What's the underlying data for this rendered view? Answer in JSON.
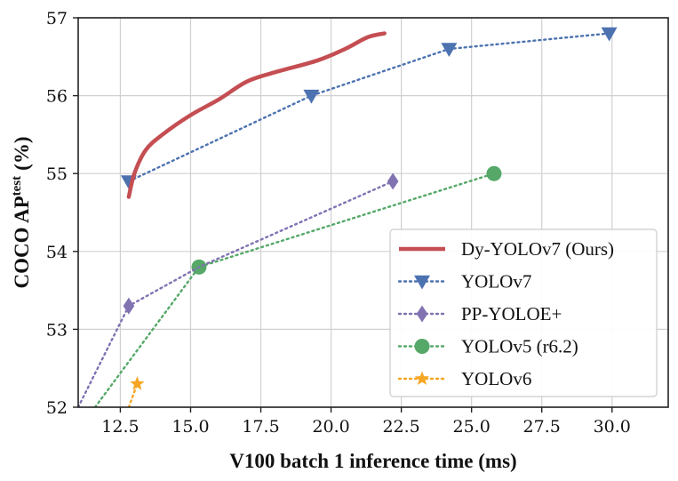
{
  "chart_data": {
    "type": "line",
    "title": "",
    "xlabel": "V100 batch 1 inference time (ms)",
    "ylabel": "COCO AP",
    "ylabel_sup": "test",
    "ylabel_suffix": "(%)",
    "xlim": [
      11.0,
      32.0
    ],
    "ylim": [
      52.0,
      57.0
    ],
    "xticks": [
      12.5,
      15.0,
      17.5,
      20.0,
      22.5,
      25.0,
      27.5,
      30.0
    ],
    "xtick_labels": [
      "12.5",
      "15.0",
      "17.5",
      "20.0",
      "22.5",
      "25.0",
      "27.5",
      "30.0"
    ],
    "yticks": [
      52,
      53,
      54,
      55,
      56,
      57
    ],
    "ytick_labels": [
      "52",
      "53",
      "54",
      "55",
      "56",
      "57"
    ],
    "grid": true,
    "legend_position": "lower-right",
    "series": [
      {
        "name": "Dy-YOLOv7 (Ours)",
        "color": "#c44e52",
        "style": "solid",
        "marker": "none",
        "x": [
          12.8,
          13.0,
          13.4,
          14.0,
          15.0,
          16.0,
          17.0,
          18.0,
          19.5,
          20.5,
          21.3,
          21.9
        ],
        "y": [
          54.7,
          55.0,
          55.3,
          55.5,
          55.75,
          55.95,
          56.18,
          56.3,
          56.45,
          56.6,
          56.75,
          56.8
        ]
      },
      {
        "name": "YOLOv7",
        "color": "#4c72b0",
        "style": "dotted",
        "marker": "triangle-down",
        "x": [
          12.8,
          19.3,
          24.2,
          29.9
        ],
        "y": [
          54.9,
          56.0,
          56.6,
          56.8
        ]
      },
      {
        "name": "PP-YOLOE+",
        "color": "#8172b2",
        "style": "dotted",
        "marker": "diamond",
        "x": [
          11.0,
          12.8,
          15.3,
          22.2
        ],
        "y": [
          52.0,
          53.3,
          53.8,
          54.9
        ],
        "marker_x": [
          12.8,
          22.2
        ],
        "marker_y": [
          53.3,
          54.9
        ]
      },
      {
        "name": "YOLOv5 (r6.2)",
        "color": "#55a868",
        "style": "dotted",
        "marker": "circle",
        "x": [
          11.6,
          15.3,
          25.8
        ],
        "y": [
          52.0,
          53.8,
          55.0
        ],
        "marker_x": [
          15.3,
          25.8
        ],
        "marker_y": [
          53.8,
          55.0
        ]
      },
      {
        "name": "YOLOv6",
        "color": "#f5a623",
        "style": "dotted",
        "marker": "star",
        "x": [
          12.8,
          13.1
        ],
        "y": [
          52.0,
          52.3
        ],
        "marker_x": [
          13.1
        ],
        "marker_y": [
          52.3
        ]
      }
    ]
  }
}
